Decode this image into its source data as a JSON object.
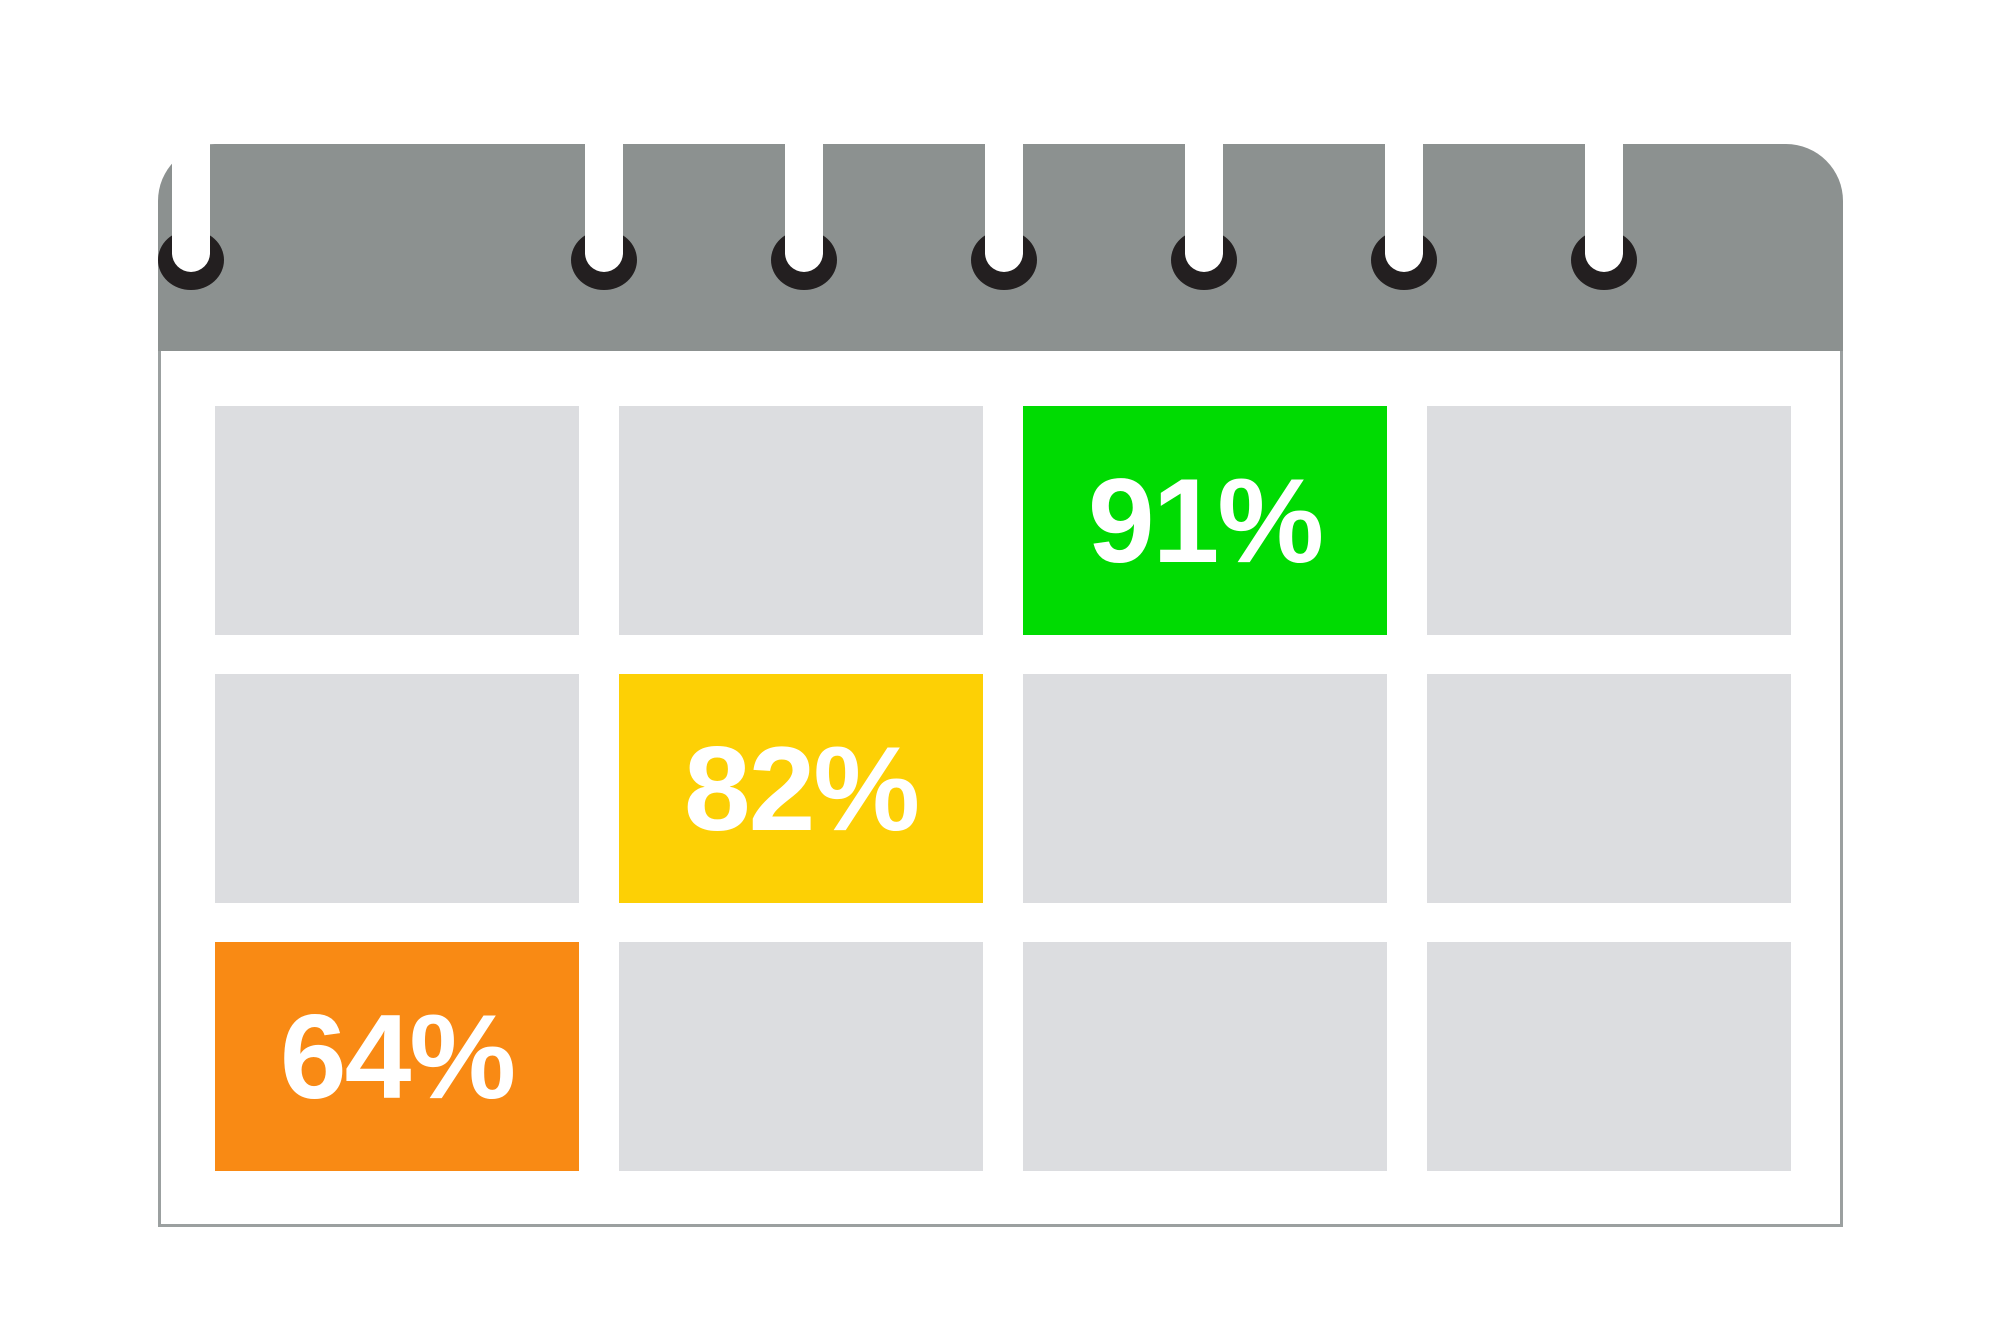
{
  "calendar": {
    "colors": {
      "background": "#FFFFFF",
      "header_gray": "#8C9190",
      "body_border": "#9BA0A0",
      "cell_gray": "#DCDDE0",
      "ring_dark": "#231F20",
      "label_text": "#FFFFFF"
    },
    "rings": {
      "count": 7
    },
    "grid": {
      "rows": 3,
      "cols": 4,
      "highlighted_cells": [
        {
          "row": 1,
          "col": 3,
          "label": "91%",
          "color": "#00DB02",
          "status": "green"
        },
        {
          "row": 2,
          "col": 2,
          "label": "82%",
          "color": "#FDD005",
          "status": "yellow"
        },
        {
          "row": 3,
          "col": 1,
          "label": "64%",
          "color": "#F98A14",
          "status": "orange"
        }
      ]
    }
  }
}
